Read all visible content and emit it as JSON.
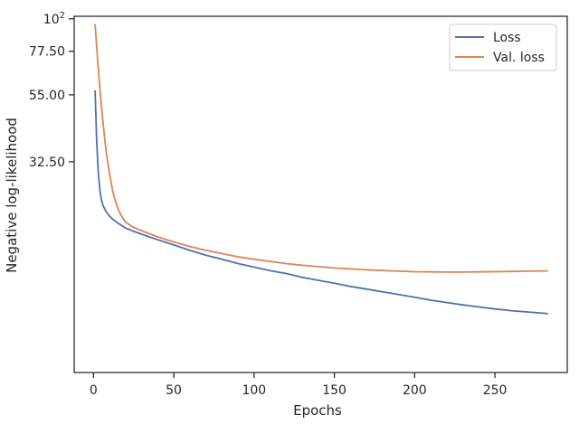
{
  "chart_data": {
    "type": "line",
    "title": "",
    "xlabel": "Epochs",
    "ylabel": "Negative log-likelihood",
    "yscale": "log",
    "xlim": [
      -12,
      295
    ],
    "ylim": [
      6.2,
      102
    ],
    "xticks": [
      0,
      50,
      100,
      150,
      200,
      250
    ],
    "yticks": [
      {
        "value": 100,
        "label": "10",
        "sup": "2"
      },
      {
        "value": 77.5,
        "label": "77.50",
        "sup": ""
      },
      {
        "value": 55.0,
        "label": "55.00",
        "sup": ""
      },
      {
        "value": 32.5,
        "label": "32.50",
        "sup": ""
      }
    ],
    "grid": false,
    "legend": {
      "position": "top-right"
    },
    "series": [
      {
        "name": "Loss",
        "color": "#4c72b0",
        "x": [
          1,
          2,
          3,
          4,
          5,
          6,
          8,
          10,
          12,
          15,
          20,
          25,
          30,
          40,
          50,
          60,
          70,
          80,
          90,
          100,
          110,
          120,
          130,
          140,
          150,
          160,
          170,
          180,
          190,
          200,
          210,
          220,
          230,
          240,
          250,
          260,
          270,
          283
        ],
        "y": [
          57,
          38,
          30,
          26,
          24,
          23,
          21.9,
          21.2,
          20.7,
          20.1,
          19.3,
          18.8,
          18.4,
          17.6,
          16.9,
          16.2,
          15.6,
          15.1,
          14.6,
          14.2,
          13.8,
          13.5,
          13.1,
          12.8,
          12.5,
          12.2,
          11.95,
          11.7,
          11.45,
          11.2,
          10.95,
          10.75,
          10.55,
          10.38,
          10.22,
          10.08,
          9.98,
          9.85
        ]
      },
      {
        "name": "Val. loss",
        "color": "#dd8452",
        "x": [
          1,
          2,
          3,
          4,
          5,
          6,
          7,
          8,
          10,
          12,
          14,
          16,
          18,
          20,
          25,
          30,
          40,
          50,
          60,
          70,
          80,
          90,
          100,
          110,
          120,
          130,
          140,
          150,
          160,
          170,
          180,
          190,
          200,
          210,
          220,
          230,
          240,
          250,
          260,
          270,
          283
        ],
        "y": [
          96,
          80,
          68,
          58,
          50,
          44,
          39,
          35,
          29.5,
          25.8,
          23.5,
          22.0,
          21.0,
          20.2,
          19.4,
          18.9,
          18.0,
          17.3,
          16.7,
          16.2,
          15.8,
          15.4,
          15.1,
          14.85,
          14.6,
          14.4,
          14.25,
          14.1,
          14.0,
          13.9,
          13.82,
          13.75,
          13.7,
          13.68,
          13.66,
          13.66,
          13.68,
          13.7,
          13.72,
          13.75,
          13.78
        ]
      }
    ]
  }
}
